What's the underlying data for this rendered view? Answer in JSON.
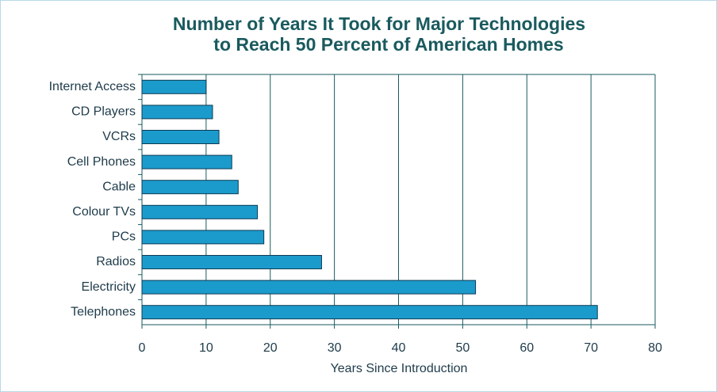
{
  "chart_data": {
    "type": "bar",
    "orientation": "horizontal",
    "title": [
      "Number of Years It Took for Major Technologies",
      "to Reach 50 Percent of American Homes"
    ],
    "x_label": "Years Since Introduction",
    "categories": [
      "Internet Access",
      "CD Players",
      "VCRs",
      "Cell Phones",
      "Cable",
      "Colour TVs",
      "PCs",
      "Radios",
      "Electricity",
      "Telephones"
    ],
    "values": [
      10,
      11,
      12,
      14,
      15,
      18,
      19,
      28,
      52,
      71
    ],
    "color": "#1b9bcb",
    "xlim": [
      0,
      80
    ],
    "xticks": [
      0,
      10,
      20,
      30,
      40,
      50,
      60,
      70,
      80
    ],
    "grid": true
  }
}
